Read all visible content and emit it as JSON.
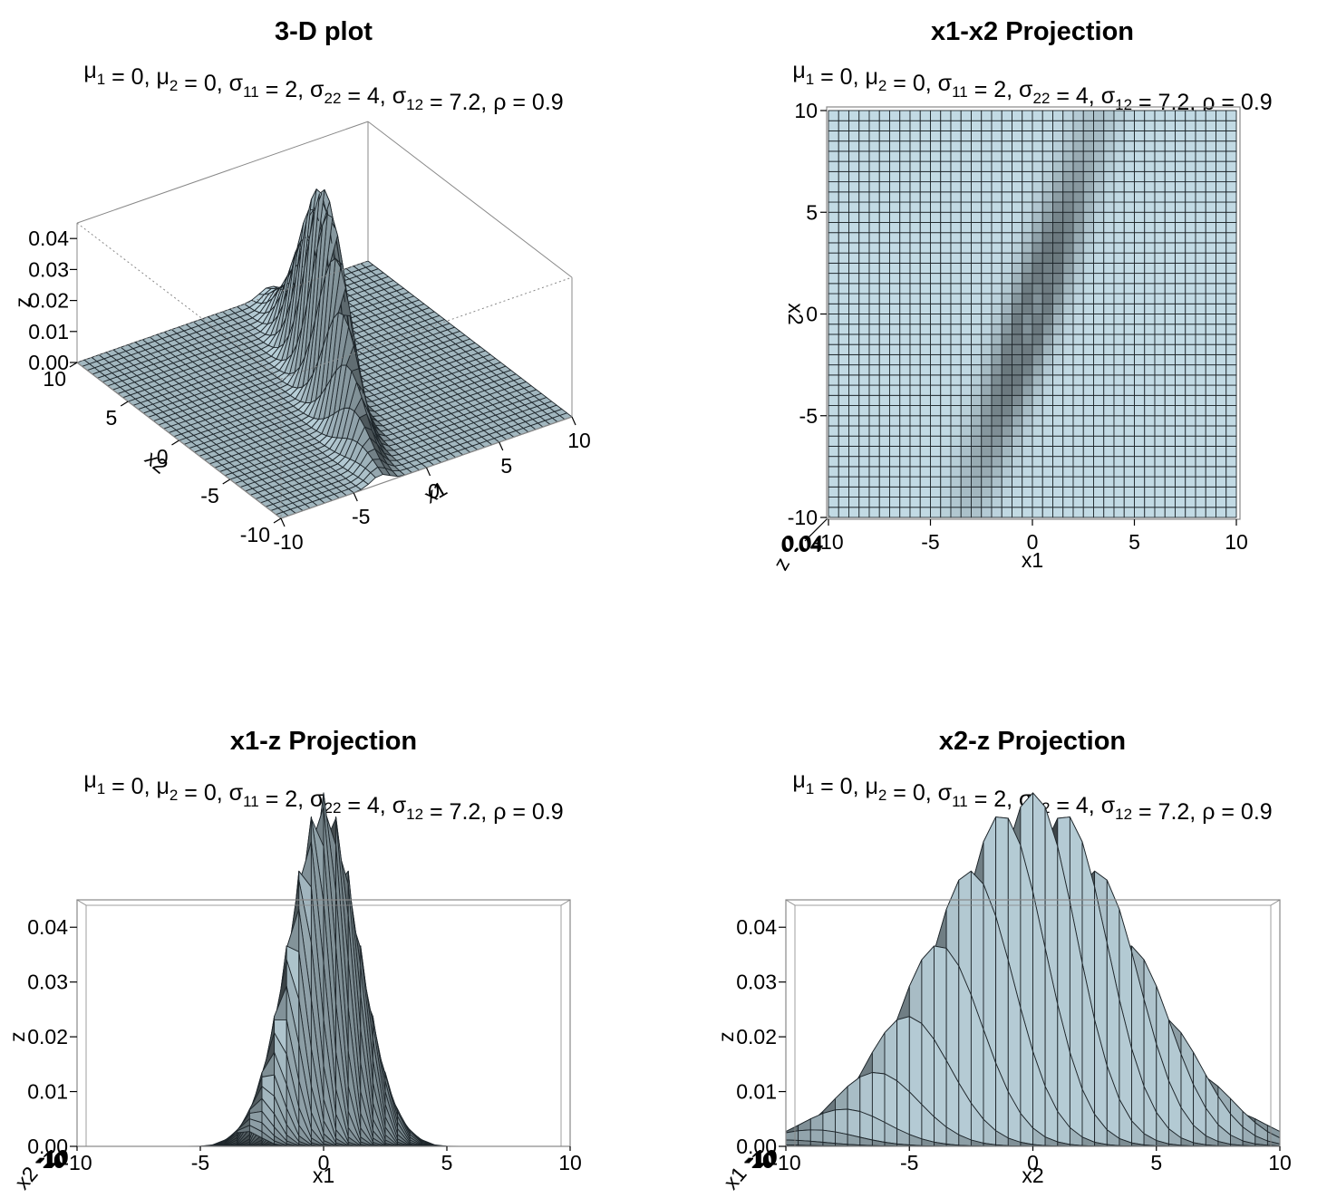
{
  "subtitle": "μ1 = 0, μ2 = 0, σ11 = 2, σ22 = 4, σ12 = 7.2, ρ = 0.9",
  "colors": {
    "surface": "#c2dae4",
    "grid_line": "#1e262b",
    "box": "#888888"
  },
  "chart_data": [
    {
      "type": "surface3d",
      "title": "3-D plot",
      "subtitle": "μ1 = 0, μ2 = 0, σ11 = 2, σ22 = 4, σ12 = 7.2, ρ = 0.9",
      "x1_ticks": [
        "-10",
        "-5",
        "0",
        "5",
        "10"
      ],
      "x2_ticks": [
        "-10",
        "-5",
        "0",
        "5",
        "10"
      ],
      "z_ticks": [
        "0.00",
        "0.01",
        "0.02",
        "0.03",
        "0.04"
      ],
      "xlabel": "x1",
      "ylabel": "x2",
      "zlabel": "z",
      "x1_range": [
        -10,
        10
      ],
      "x2_range": [
        -10,
        10
      ],
      "z_range": [
        0,
        0.045
      ],
      "peak_z": 0.045
    },
    {
      "type": "surface3d",
      "title": "x1-x2 Projection",
      "subtitle": "μ1 = 0, μ2 = 0, σ11 = 2, σ22 = 4, σ12 = 7.2, ρ = 0.9",
      "x_ticks": [
        "-10",
        "-5",
        "0",
        "5",
        "10"
      ],
      "y_ticks": [
        "-10",
        "-5",
        "0",
        "5",
        "10"
      ],
      "z_tick_glyphs": "0.04",
      "xlabel": "x1",
      "ylabel": "x2",
      "zlabel": "z",
      "x_range": [
        -10,
        10
      ],
      "y_range": [
        -10,
        10
      ]
    },
    {
      "type": "surface3d",
      "title": "x1-z Projection",
      "subtitle": "μ1 = 0, μ2 = 0, σ11 = 2, σ22 = 4, σ12 = 7.2, ρ = 0.9",
      "x_ticks": [
        "-10",
        "-5",
        "0",
        "5",
        "10"
      ],
      "z_ticks": [
        "0.00",
        "0.01",
        "0.02",
        "0.03",
        "0.04"
      ],
      "xlabel": "x1",
      "zlabel": "z",
      "depth_label": "x2",
      "depth_tick_glyphs": "-10",
      "x_range": [
        -10,
        10
      ],
      "z_range": [
        0,
        0.045
      ]
    },
    {
      "type": "surface3d",
      "title": "x2-z Projection",
      "subtitle": "μ1 = 0, μ2 = 0, σ11 = 2, σ22 = 4, σ12 = 7.2, ρ = 0.9",
      "x_ticks": [
        "-10",
        "-5",
        "0",
        "5",
        "10"
      ],
      "z_ticks": [
        "0.00",
        "0.01",
        "0.02",
        "0.03",
        "0.04"
      ],
      "xlabel": "x2",
      "zlabel": "z",
      "depth_label": "x1",
      "depth_tick_glyphs": "-10",
      "x_range": [
        -10,
        10
      ],
      "z_range": [
        0,
        0.045
      ]
    }
  ]
}
